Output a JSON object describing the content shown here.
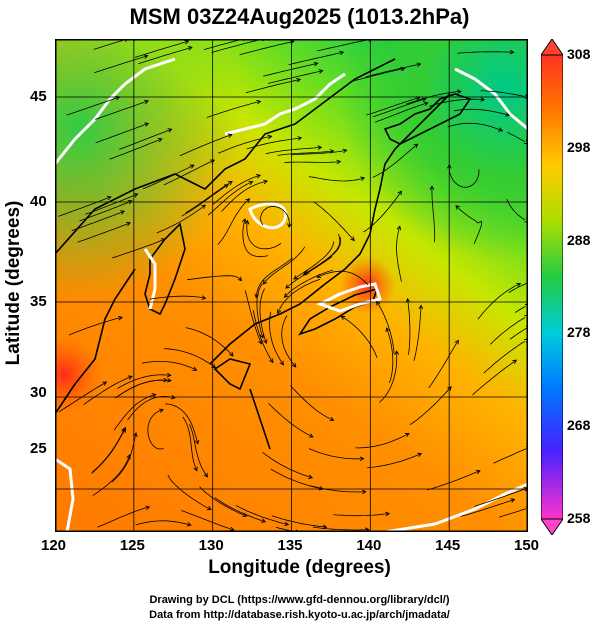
{
  "title": "MSM 03Z24Aug2025 (1013.2hPa)",
  "axes": {
    "x_label": "Longitude (degrees)",
    "y_label": "Latitude  (degrees)",
    "x_ticks": [
      "120",
      "125",
      "130",
      "135",
      "140",
      "145",
      "150"
    ],
    "y_ticks": [
      "25",
      "30",
      "35",
      "40",
      "45"
    ]
  },
  "colorbar": {
    "ticks": [
      "308",
      "298",
      "288",
      "278",
      "268",
      "258"
    ],
    "min": 258,
    "max": 308,
    "colors": [
      "#ff33cc",
      "#2222ff",
      "#00aaff",
      "#00ddcc",
      "#22cc44",
      "#ccee00",
      "#ffcc00",
      "#ff7700",
      "#ff3322"
    ]
  },
  "credits": {
    "line1": "Drawing by DCL (https://www.gfd-dennou.org/library/dcl/)",
    "line2": "Data from http://database.rish.kyoto-u.ac.jp/arch/jmadata/"
  }
}
